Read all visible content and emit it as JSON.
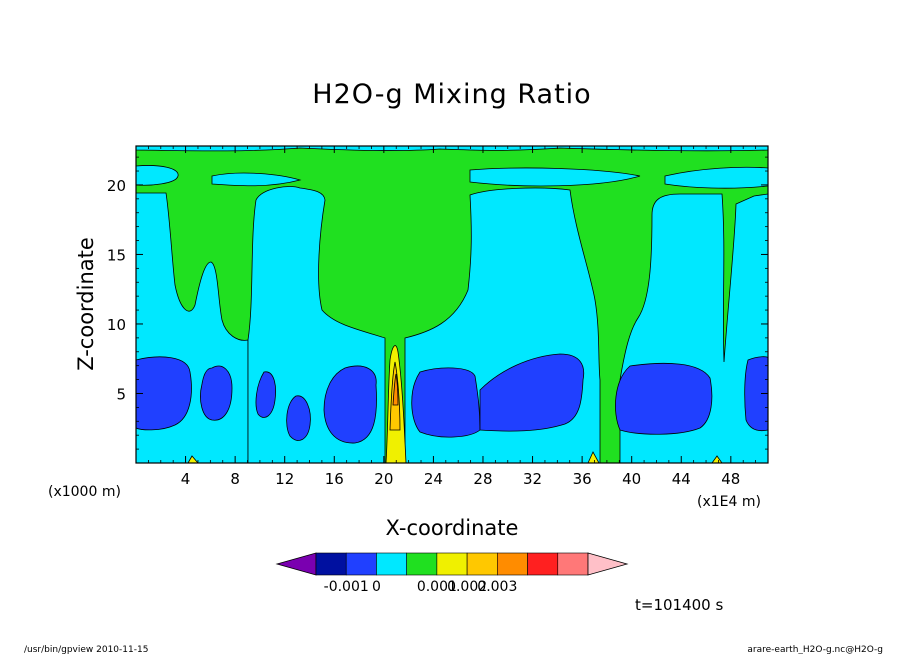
{
  "chart_data": {
    "type": "heatmap",
    "title": "H2O-g Mixing Ratio",
    "xlabel": "X-coordinate",
    "ylabel": "Z-coordinate",
    "x_unit_left": "(x1000 m)",
    "x_unit_right": "(x1E4 m)",
    "x_ticks": [
      4,
      8,
      12,
      16,
      20,
      24,
      28,
      32,
      36,
      40,
      44,
      48
    ],
    "y_ticks": [
      5,
      10,
      15,
      20
    ],
    "xlim": [
      0,
      51
    ],
    "ylim": [
      0,
      22.8
    ],
    "colorbar": {
      "colors": [
        "#7a00b0",
        "#0010a0",
        "#2040ff",
        "#00e8ff",
        "#20e020",
        "#f0f000",
        "#ffc800",
        "#ff8c00",
        "#ff2020",
        "#ff7878",
        "#ffc0c8"
      ],
      "tick_labels": [
        "-0.001",
        "0",
        "0.001",
        "0.002",
        "0.003"
      ],
      "tick_boundaries": [
        2,
        3,
        5,
        6,
        7
      ]
    },
    "regions": {
      "background_green": "#20e020",
      "cyan_columns": [
        {
          "x_left": 0,
          "x_right": 2.5,
          "z_top": 19.6
        },
        {
          "x_left": 9.5,
          "x_right": 15.5,
          "z_top": 19.6
        },
        {
          "x_left": 27.5,
          "x_right": 35.5,
          "z_top": 20.0
        },
        {
          "x_left": 41.5,
          "x_right": 47.5,
          "z_top": 19.6
        },
        {
          "x_left": 49.0,
          "x_right": 51.0,
          "z_top": 19.6
        }
      ],
      "blue_cores": [
        {
          "x_left": 0,
          "x_right": 4.2,
          "z_bottom": 2.3,
          "z_top": 7.6
        },
        {
          "x_left": 5.2,
          "x_right": 7.6,
          "z_bottom": 2.9,
          "z_top": 7.1
        },
        {
          "x_left": 9.6,
          "x_right": 11.2,
          "z_bottom": 3.0,
          "z_top": 6.7
        },
        {
          "x_left": 11.9,
          "x_right": 13.9,
          "z_bottom": 1.7,
          "z_top": 4.9
        },
        {
          "x_left": 15.6,
          "x_right": 19.5,
          "z_bottom": 1.5,
          "z_top": 7.0
        },
        {
          "x_left": 22.0,
          "x_right": 27.5,
          "z_bottom": 1.9,
          "z_top": 6.9
        },
        {
          "x_left": 27.5,
          "x_right": 36.6,
          "z_bottom": 2.1,
          "z_top": 7.8
        },
        {
          "x_left": 38.8,
          "x_right": 46.5,
          "z_bottom": 1.7,
          "z_top": 7.0
        },
        {
          "x_left": 48.0,
          "x_right": 51.0,
          "z_bottom": 1.7,
          "z_top": 7.6
        }
      ],
      "moist_plume": {
        "x_center": 20.9,
        "z_top": 8.6
      }
    },
    "time_label": "t=101400 s"
  },
  "footer": {
    "left": "/usr/bin/gpview   2010-11-15",
    "right": "arare-earth_H2O-g.nc@H2O-g"
  }
}
